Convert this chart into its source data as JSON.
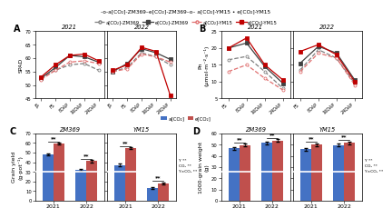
{
  "panel_A": {
    "ylabel": "SPAD",
    "xticks": [
      "JS",
      "FS",
      "8DAP",
      "16DAP",
      "24DAP"
    ],
    "ylim": [
      45,
      70
    ],
    "yticks": [
      45,
      50,
      55,
      60,
      65,
      70
    ],
    "zm369_a_2021": [
      52.5,
      55.5,
      57.5,
      58.0,
      55.5
    ],
    "zm369_e_2021": [
      52.5,
      56.5,
      61.0,
      60.5,
      58.5
    ],
    "ym15_a_2021": [
      52.0,
      55.5,
      58.5,
      59.0,
      58.0
    ],
    "ym15_e_2021": [
      53.0,
      57.5,
      61.0,
      61.5,
      59.0
    ],
    "zm369_a_2022": [
      55.0,
      56.5,
      62.0,
      60.5,
      57.5
    ],
    "zm369_e_2022": [
      55.0,
      58.0,
      63.5,
      62.0,
      59.5
    ],
    "ym15_a_2022": [
      55.0,
      56.0,
      61.5,
      60.5,
      58.5
    ],
    "ym15_e_2022": [
      55.5,
      57.5,
      64.0,
      62.5,
      46.0
    ]
  },
  "panel_B": {
    "ylabel": "Pn\n(μmol·m⁻²·s⁻¹)",
    "xticks": [
      "FS",
      "8DAP",
      "16DAP",
      "24DAP"
    ],
    "ylim": [
      5,
      25
    ],
    "yticks": [
      5,
      10,
      15,
      20,
      25
    ],
    "zm369_a_2021": [
      16.5,
      17.5,
      13.0,
      8.0
    ],
    "zm369_e_2021": [
      20.0,
      21.5,
      14.5,
      9.5
    ],
    "ym15_a_2021": [
      13.0,
      15.0,
      11.0,
      7.5
    ],
    "ym15_e_2021": [
      20.0,
      23.0,
      15.0,
      10.5
    ],
    "zm369_a_2022": [
      13.5,
      19.5,
      17.0,
      9.5
    ],
    "zm369_e_2022": [
      15.5,
      20.5,
      18.5,
      10.5
    ],
    "ym15_a_2022": [
      13.0,
      18.5,
      17.0,
      9.0
    ],
    "ym15_e_2022": [
      19.0,
      21.0,
      18.0,
      10.0
    ]
  },
  "panel_C": {
    "title_left": "ZM369",
    "title_right": "YM15",
    "ylabel": "Grain yield\n(g·pot⁻¹)",
    "xticks": [
      "2021",
      "2022"
    ],
    "ylim": [
      0,
      70
    ],
    "yticks": [
      0,
      10,
      20,
      30,
      40,
      50,
      60,
      70
    ],
    "zm369_a": [
      48.0,
      32.0
    ],
    "zm369_e": [
      59.5,
      41.0
    ],
    "ym15_a": [
      37.0,
      13.0
    ],
    "ym15_e": [
      54.5,
      18.0
    ],
    "stats": "Y **\nCO₂ **\nY×CO₂ **"
  },
  "panel_D": {
    "title_left": "ZM369",
    "title_right": "YM15",
    "ylabel": "1000-grain weight\n(g)",
    "xticks": [
      "2021",
      "2022"
    ],
    "ylim": [
      0,
      60
    ],
    "yticks": [
      0,
      10,
      20,
      30,
      40,
      50,
      60
    ],
    "zm369_a": [
      46.5,
      51.5
    ],
    "zm369_e": [
      49.5,
      53.5
    ],
    "ym15_a": [
      46.0,
      49.5
    ],
    "ym15_e": [
      50.0,
      51.5
    ],
    "stats": "Y **\nCO₂ **\nY×CO₂ **"
  },
  "colors": {
    "zm369_a": "#7f7f7f",
    "zm369_e": "#404040",
    "ym15_a": "#e07070",
    "ym15_e": "#c00000",
    "bar_a": "#4472c4",
    "bar_e": "#c0504d"
  }
}
